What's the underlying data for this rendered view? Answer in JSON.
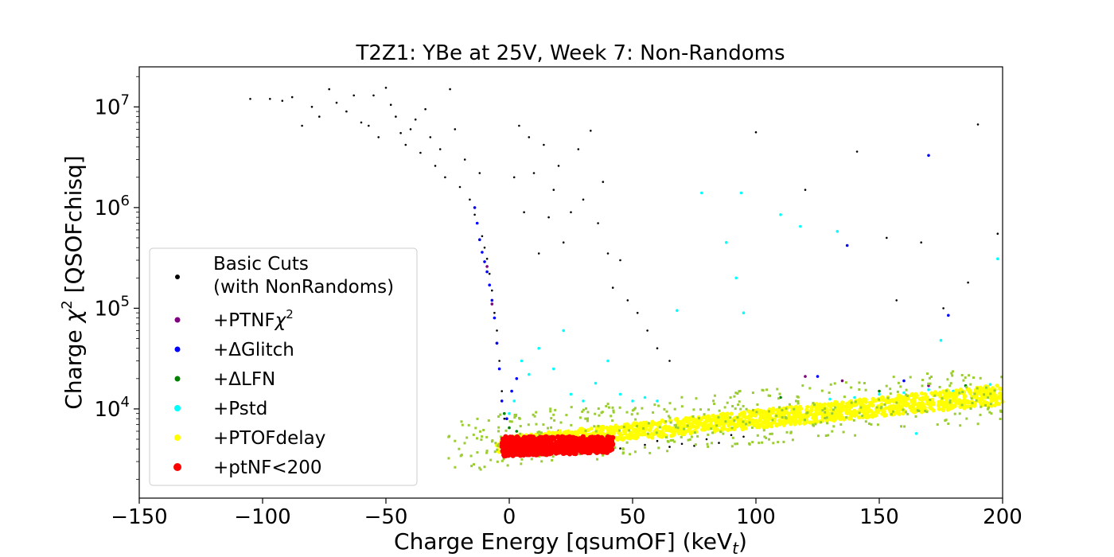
{
  "chart_data": {
    "type": "scatter",
    "title": "T2Z1: YBe at 25V, Week 7: Non-Randoms",
    "xlabel": {
      "main": "Charge Energy [qsumOF] (keV",
      "sub": "t",
      "end": ")"
    },
    "ylabel": {
      "main": "Charge ",
      "chi": "χ",
      "sup": "2",
      "end": " [QSOFchisq]"
    },
    "xlim": [
      -150,
      200
    ],
    "ylim": [
      1300,
      25000000
    ],
    "yscale": "log",
    "grid": false,
    "xticks": [
      -150,
      -100,
      -50,
      0,
      50,
      100,
      150,
      200
    ],
    "xtick_labels": [
      "−150",
      "−100",
      "−50",
      "0",
      "50",
      "100",
      "150",
      "200"
    ],
    "yticks": [
      10000,
      100000,
      1000000,
      10000000
    ],
    "ytick_labels": [
      {
        "base": "10",
        "exp": "4"
      },
      {
        "base": "10",
        "exp": "5"
      },
      {
        "base": "10",
        "exp": "6"
      },
      {
        "base": "10",
        "exp": "7"
      }
    ],
    "legend_position": "lower-left",
    "legend": [
      {
        "label": "Basic Cuts",
        "label2": "(with NonRandoms)",
        "color": "#000000",
        "radius": 3
      },
      {
        "label": "+PTNF",
        "chi": "χ",
        "sup": "2",
        "color": "#800080",
        "radius": 3.5
      },
      {
        "label": "+ΔGlitch",
        "color": "#0000ff",
        "radius": 3.5
      },
      {
        "label": "+ΔLFN",
        "color": "#008000",
        "radius": 3.5
      },
      {
        "label": "+Pstd",
        "color": "#00ffff",
        "radius": 4
      },
      {
        "label": "+PTOFdelay",
        "color": "#ffff00",
        "radius": 4
      },
      {
        "label": "+ptNF<200",
        "color": "#ff0000",
        "radius": 5
      }
    ],
    "series": [
      {
        "name": "Basic Cuts (with NonRandoms)",
        "color": "#000000",
        "points": [
          [
            -105,
            12000000
          ],
          [
            -97,
            12000000
          ],
          [
            -92,
            11500000
          ],
          [
            -88,
            12500000
          ],
          [
            -84,
            6500000
          ],
          [
            -80,
            10000000
          ],
          [
            -77,
            8000000
          ],
          [
            -73,
            15000000
          ],
          [
            -70,
            11000000
          ],
          [
            -66,
            9000000
          ],
          [
            -63,
            13000000
          ],
          [
            -60,
            7000000
          ],
          [
            -57,
            6500000
          ],
          [
            -55,
            13000000
          ],
          [
            -53,
            5000000
          ],
          [
            -50,
            15500000
          ],
          [
            -48,
            10500000
          ],
          [
            -46,
            8000000
          ],
          [
            -44,
            5500000
          ],
          [
            -42,
            4200000
          ],
          [
            -40,
            6000000
          ],
          [
            -38,
            7500000
          ],
          [
            -36,
            3500000
          ],
          [
            -34,
            9500000
          ],
          [
            -32,
            5000000
          ],
          [
            -30,
            2600000
          ],
          [
            -28,
            3800000
          ],
          [
            -26,
            2000000
          ],
          [
            -24,
            15000000
          ],
          [
            -22,
            6000000
          ],
          [
            -20,
            1600000
          ],
          [
            -18,
            3000000
          ],
          [
            -16,
            1200000
          ],
          [
            -14,
            850000
          ],
          [
            -12,
            2200000
          ],
          [
            -11,
            520000
          ],
          [
            -10,
            400000
          ],
          [
            -9,
            310000
          ],
          [
            -8,
            220000
          ],
          [
            -7,
            150000
          ],
          [
            -6,
            90000
          ],
          [
            -5,
            60000
          ],
          [
            -4,
            30000
          ],
          [
            -3,
            15000
          ],
          [
            -2,
            8000
          ],
          [
            2,
            2000000
          ],
          [
            4,
            6500000
          ],
          [
            6,
            900000
          ],
          [
            8,
            5000000
          ],
          [
            10,
            2200000
          ],
          [
            12,
            350000
          ],
          [
            14,
            4200000
          ],
          [
            16,
            800000
          ],
          [
            18,
            1500000
          ],
          [
            20,
            2600000
          ],
          [
            22,
            450000
          ],
          [
            25,
            900000
          ],
          [
            28,
            3800000
          ],
          [
            30,
            1200000
          ],
          [
            33,
            5800000
          ],
          [
            36,
            700000
          ],
          [
            38,
            1800000
          ],
          [
            40,
            350000
          ],
          [
            42,
            160000
          ],
          [
            45,
            300000
          ],
          [
            48,
            120000
          ],
          [
            52,
            90000
          ],
          [
            56,
            60000
          ],
          [
            60,
            40000
          ],
          [
            65,
            30000
          ],
          [
            20,
            6100
          ],
          [
            30,
            5900
          ],
          [
            40,
            5600
          ],
          [
            50,
            5400
          ],
          [
            60,
            4800
          ],
          [
            70,
            4500
          ],
          [
            80,
            5000
          ],
          [
            90,
            5500
          ],
          [
            95,
            5300
          ],
          [
            55,
            4400
          ],
          [
            75,
            4300
          ],
          [
            85,
            4600
          ],
          [
            65,
            4200
          ],
          [
            35,
            4100
          ],
          [
            45,
            4050
          ],
          [
            100,
            5600000
          ],
          [
            120,
            1500000
          ],
          [
            141,
            3600000
          ],
          [
            153,
            500000
          ],
          [
            167,
            450000
          ],
          [
            176,
            100000
          ],
          [
            186,
            180000
          ],
          [
            190,
            6700000
          ],
          [
            198,
            550000
          ],
          [
            157,
            120000
          ]
        ]
      },
      {
        "name": "+PTNFχ2",
        "color": "#800080",
        "points": [
          [
            -9,
            260000
          ],
          [
            -7,
            110000
          ],
          [
            -5,
            45000
          ],
          [
            120,
            21000
          ],
          [
            135,
            19000
          ],
          [
            170,
            17000
          ]
        ]
      },
      {
        "name": "+ΔGlitch",
        "color": "#0000ff",
        "points": [
          [
            -14,
            1000000
          ],
          [
            -13,
            700000
          ],
          [
            -12,
            480000
          ],
          [
            -11,
            360000
          ],
          [
            -10,
            290000
          ],
          [
            -9,
            230000
          ],
          [
            -8,
            170000
          ],
          [
            -7,
            120000
          ],
          [
            -6,
            80000
          ],
          [
            -5,
            45000
          ],
          [
            -4,
            25000
          ],
          [
            -3,
            12000
          ],
          [
            -1,
            8000
          ],
          [
            1,
            15000
          ],
          [
            3,
            20000
          ],
          [
            170,
            3300000
          ],
          [
            137,
            420000
          ],
          [
            178,
            85000
          ],
          [
            125,
            21000
          ],
          [
            160,
            19000
          ]
        ]
      },
      {
        "name": "+ΔLFN",
        "color": "#008000",
        "points": [
          [
            -2,
            9000
          ],
          [
            0,
            6500
          ],
          [
            3,
            6000
          ],
          [
            110,
            13000
          ],
          [
            150,
            15000
          ],
          [
            185,
            17000
          ]
        ]
      },
      {
        "name": "+Pstd",
        "color": "#00ffff",
        "points": [
          [
            0,
            9000
          ],
          [
            2,
            12000
          ],
          [
            5,
            30000
          ],
          [
            8,
            22000
          ],
          [
            12,
            40000
          ],
          [
            18,
            25000
          ],
          [
            22,
            60000
          ],
          [
            25,
            14000
          ],
          [
            30,
            12000
          ],
          [
            35,
            18000
          ],
          [
            40,
            30000
          ],
          [
            45,
            14000
          ],
          [
            50,
            12000
          ],
          [
            55,
            13000
          ],
          [
            60,
            12000
          ],
          [
            68,
            95000
          ],
          [
            78,
            1400000
          ],
          [
            88,
            450000
          ],
          [
            94,
            1400000
          ],
          [
            92,
            200000
          ],
          [
            95,
            90000
          ],
          [
            110,
            850000
          ],
          [
            118,
            650000
          ],
          [
            133,
            580000
          ],
          [
            165,
            5700
          ],
          [
            198,
            310000
          ],
          [
            175,
            48000
          ],
          [
            150,
            14000
          ],
          [
            190,
            16000
          ],
          [
            170,
            15500
          ],
          [
            140,
            13000
          ],
          [
            180,
            15000
          ],
          [
            130,
            12500
          ],
          [
            160,
            14500
          ],
          [
            195,
            17500
          ]
        ]
      },
      {
        "name": "+PTOFdelay",
        "color": "#ffff00",
        "band": {
          "x0": -5,
          "x1": 200,
          "y0_lo": 3700,
          "y0_hi": 5200,
          "y1_lo": 11000,
          "y1_hi": 17500,
          "n": 1400
        }
      },
      {
        "name": "+ptNF<200",
        "color": "#ff0000",
        "band": {
          "x0": -3,
          "x1": 42,
          "y0_lo": 3400,
          "y0_hi": 5300,
          "y1_lo": 3700,
          "y1_hi": 5300,
          "n": 650
        }
      }
    ]
  }
}
